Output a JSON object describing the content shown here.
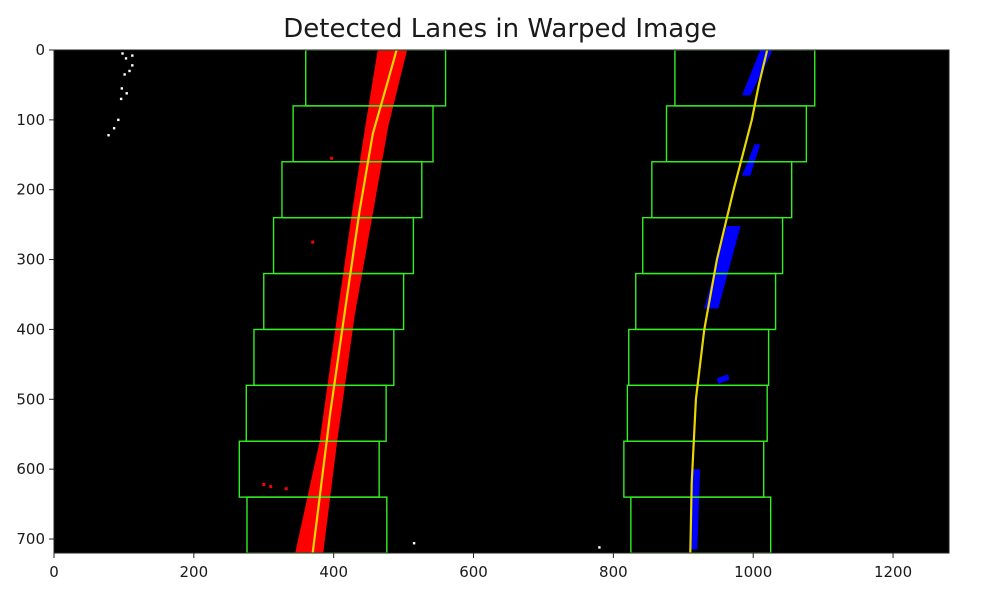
{
  "chart_data": {
    "type": "image-overlay",
    "title": "Detected Lanes in Warped Image",
    "xlabel": "",
    "ylabel": "",
    "xlim": [
      0,
      1280
    ],
    "ylim": [
      720,
      0
    ],
    "xticks": [
      0,
      200,
      400,
      600,
      800,
      1000,
      1200
    ],
    "yticks": [
      0,
      100,
      200,
      300,
      400,
      500,
      600,
      700
    ],
    "grid": false,
    "background_color": "#000000",
    "window_color": "#33ee22",
    "fit_color": "#e8d800",
    "left_pixel_color": "#ff0000",
    "right_pixel_color": "#0000ff",
    "stray_pixel_color": "#ffffff",
    "left_fit": [
      [
        370,
        720
      ],
      [
        395,
        520
      ],
      [
        418,
        360
      ],
      [
        437,
        230
      ],
      [
        456,
        120
      ],
      [
        476,
        50
      ],
      [
        490,
        0
      ]
    ],
    "right_fit": [
      [
        910,
        720
      ],
      [
        912,
        620
      ],
      [
        918,
        500
      ],
      [
        930,
        400
      ],
      [
        948,
        300
      ],
      [
        972,
        200
      ],
      [
        998,
        100
      ],
      [
        1008,
        50
      ],
      [
        1020,
        0
      ]
    ],
    "left_windows": [
      {
        "x1": 276,
        "x2": 476,
        "y1": 640,
        "y2": 720
      },
      {
        "x1": 265,
        "x2": 465,
        "y1": 560,
        "y2": 640
      },
      {
        "x1": 275,
        "x2": 475,
        "y1": 480,
        "y2": 560
      },
      {
        "x1": 286,
        "x2": 486,
        "y1": 400,
        "y2": 480
      },
      {
        "x1": 300,
        "x2": 500,
        "y1": 320,
        "y2": 400
      },
      {
        "x1": 314,
        "x2": 514,
        "y1": 240,
        "y2": 320
      },
      {
        "x1": 326,
        "x2": 526,
        "y1": 160,
        "y2": 240
      },
      {
        "x1": 342,
        "x2": 542,
        "y1": 80,
        "y2": 160
      },
      {
        "x1": 360,
        "x2": 560,
        "y1": 0,
        "y2": 80
      }
    ],
    "right_windows": [
      {
        "x1": 825,
        "x2": 1025,
        "y1": 640,
        "y2": 720
      },
      {
        "x1": 815,
        "x2": 1015,
        "y1": 560,
        "y2": 640
      },
      {
        "x1": 820,
        "x2": 1020,
        "y1": 480,
        "y2": 560
      },
      {
        "x1": 822,
        "x2": 1022,
        "y1": 400,
        "y2": 480
      },
      {
        "x1": 832,
        "x2": 1032,
        "y1": 320,
        "y2": 400
      },
      {
        "x1": 842,
        "x2": 1042,
        "y1": 240,
        "y2": 320
      },
      {
        "x1": 855,
        "x2": 1055,
        "y1": 160,
        "y2": 240
      },
      {
        "x1": 876,
        "x2": 1076,
        "y1": 80,
        "y2": 160
      },
      {
        "x1": 888,
        "x2": 1088,
        "y1": 0,
        "y2": 80
      }
    ],
    "left_blob": [
      [
        345,
        720
      ],
      [
        385,
        720
      ],
      [
        405,
        560
      ],
      [
        430,
        380
      ],
      [
        455,
        240
      ],
      [
        478,
        110
      ],
      [
        505,
        0
      ],
      [
        463,
        0
      ],
      [
        445,
        110
      ],
      [
        425,
        240
      ],
      [
        405,
        380
      ],
      [
        380,
        560
      ]
    ],
    "right_blobs": [
      [
        [
          910,
          715
        ],
        [
          920,
          715
        ],
        [
          924,
          600
        ],
        [
          914,
          600
        ]
      ],
      [
        [
          930,
          370
        ],
        [
          950,
          370
        ],
        [
          982,
          252
        ],
        [
          962,
          252
        ]
      ],
      [
        [
          984,
          65
        ],
        [
          996,
          65
        ],
        [
          1028,
          0
        ],
        [
          1010,
          0
        ]
      ],
      [
        [
          984,
          180
        ],
        [
          996,
          180
        ],
        [
          1010,
          135
        ],
        [
          1002,
          135
        ]
      ],
      [
        [
          950,
          478
        ],
        [
          966,
          472
        ],
        [
          964,
          464
        ],
        [
          948,
          470
        ]
      ]
    ],
    "left_specks": [
      [
        300,
        622
      ],
      [
        310,
        625
      ],
      [
        370,
        275
      ],
      [
        397,
        155
      ],
      [
        482,
        60
      ],
      [
        332,
        628
      ]
    ],
    "stray_points": [
      [
        98,
        5
      ],
      [
        103,
        12
      ],
      [
        112,
        22
      ],
      [
        101,
        35
      ],
      [
        108,
        30
      ],
      [
        97,
        55
      ],
      [
        104,
        62
      ],
      [
        92,
        100
      ],
      [
        86,
        112
      ],
      [
        78,
        122
      ],
      [
        112,
        8
      ],
      [
        96,
        70
      ],
      [
        515,
        706
      ],
      [
        780,
        712
      ]
    ]
  }
}
